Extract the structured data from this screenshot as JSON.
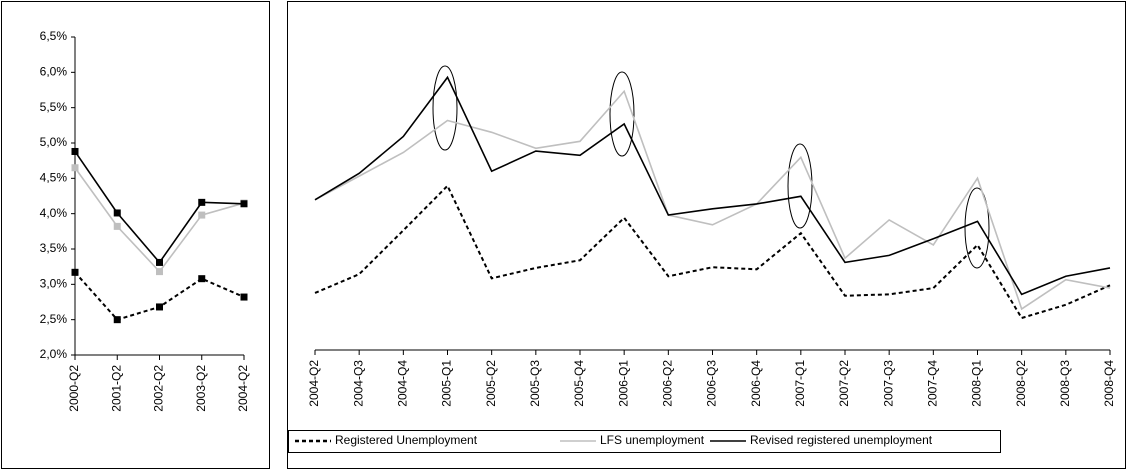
{
  "chart_data": [
    {
      "type": "line",
      "marker": "square",
      "categories": [
        "2000-Q2",
        "2001-Q2",
        "2002-Q2",
        "2003-Q2",
        "2004-Q2"
      ],
      "series": [
        {
          "color": "#000000",
          "style": "dashed",
          "values": [
            3.17,
            2.5,
            2.68,
            3.08,
            2.82
          ]
        },
        {
          "color": "#bfbfbf",
          "style": "solid",
          "values": [
            4.65,
            3.82,
            3.18,
            3.98,
            4.15
          ]
        },
        {
          "color": "#000000",
          "style": "solid",
          "values": [
            4.88,
            4.01,
            3.31,
            4.16,
            4.14
          ]
        }
      ],
      "ylim": [
        2,
        6.5
      ],
      "yticks": [
        {
          "value": 2,
          "label": "2,0%"
        },
        {
          "value": 2.5,
          "label": "2,5%"
        },
        {
          "value": 3,
          "label": "3,0%"
        },
        {
          "value": 3.5,
          "label": "3,5%"
        },
        {
          "value": 4,
          "label": "4,0%"
        },
        {
          "value": 4.5,
          "label": "4,5%"
        },
        {
          "value": 5,
          "label": "5,0%"
        },
        {
          "value": 5.5,
          "label": "5,5%"
        },
        {
          "value": 6,
          "label": "6,0%"
        },
        {
          "value": 6.5,
          "label": "6,5%"
        }
      ]
    },
    {
      "type": "line",
      "legend": "bottom",
      "categories": [
        "2004-Q2",
        "2004-Q3",
        "2004-Q4",
        "2005-Q1",
        "2005-Q2",
        "2005-Q3",
        "2005-Q4",
        "2006-Q1",
        "2006-Q2",
        "2006-Q3",
        "2006-Q4",
        "2007-Q1",
        "2007-Q2",
        "2007-Q3",
        "2007-Q4",
        "2008-Q1",
        "2008-Q2",
        "2008-Q3",
        "2008-Q4"
      ],
      "series": [
        {
          "name": "Registered Unemployment",
          "color": "#000000",
          "style": "dashed",
          "values": [
            2.82,
            3.09,
            3.72,
            4.36,
            3.03,
            3.18,
            3.29,
            3.9,
            3.06,
            3.19,
            3.16,
            3.68,
            2.78,
            2.8,
            2.89,
            3.51,
            2.46,
            2.65,
            2.93
          ]
        },
        {
          "name": "LFS unemployment",
          "color": "#bfbfbf",
          "style": "solid",
          "values": [
            4.16,
            4.5,
            4.84,
            5.3,
            5.13,
            4.9,
            5.0,
            5.72,
            3.94,
            3.8,
            4.1,
            4.77,
            3.32,
            3.87,
            3.51,
            4.47,
            2.59,
            3.01,
            2.89
          ]
        },
        {
          "name": "Revised registered unemployment",
          "color": "#000000",
          "style": "solid",
          "values": [
            4.16,
            4.54,
            5.07,
            5.92,
            4.57,
            4.86,
            4.8,
            5.25,
            3.94,
            4.03,
            4.1,
            4.21,
            3.26,
            3.36,
            3.6,
            3.85,
            2.8,
            3.06,
            3.18
          ]
        }
      ],
      "ylim": [
        2,
        6.5
      ]
    }
  ]
}
